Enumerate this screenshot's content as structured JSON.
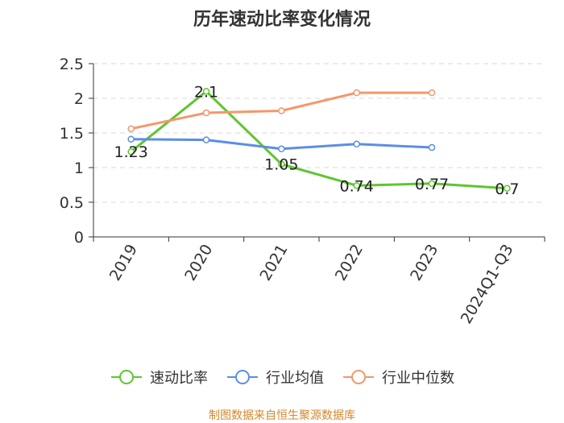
{
  "chart_data": {
    "type": "line",
    "title": "历年速动比率变化情况",
    "categories": [
      "2019",
      "2020",
      "2021",
      "2022",
      "2023",
      "2024Q1-Q3"
    ],
    "ylim": [
      0,
      2.5
    ],
    "yticks": [
      "0",
      "0.5",
      "1",
      "1.5",
      "2",
      "2.5"
    ],
    "grid": true,
    "legend_position": "bottom",
    "series": [
      {
        "name": "速动比率",
        "color": "#5fc52f",
        "values": [
          1.23,
          2.1,
          1.05,
          0.74,
          0.77,
          0.7
        ],
        "labels": [
          "1.23",
          "2.1",
          "1.05",
          "0.74",
          "0.77",
          "0.7"
        ]
      },
      {
        "name": "行业均值",
        "color": "#5b8ee6",
        "values": [
          1.41,
          1.4,
          1.27,
          1.34,
          1.29,
          null
        ]
      },
      {
        "name": "行业中位数",
        "color": "#f5976a",
        "values": [
          1.56,
          1.79,
          1.82,
          2.08,
          2.08,
          null
        ]
      }
    ]
  },
  "footer": {
    "source": "制图数据来自恒生聚源数据库"
  }
}
